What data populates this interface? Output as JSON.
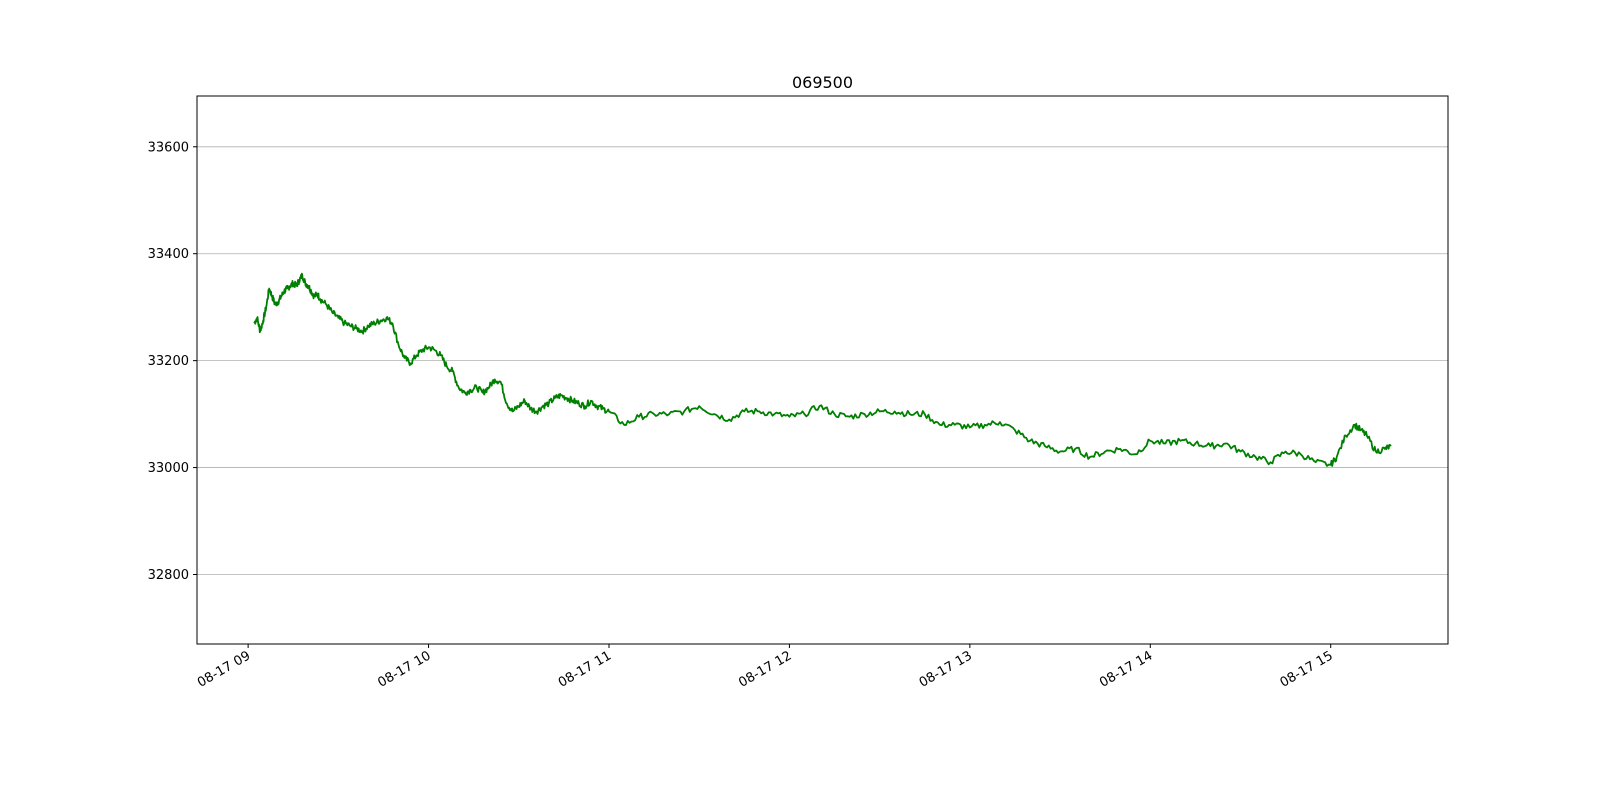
{
  "chart_data": {
    "type": "line",
    "title": "069500",
    "xlabel": "",
    "ylabel": "",
    "x_ticks": [
      "08-17 09",
      "08-17 10",
      "08-17 11",
      "08-17 12",
      "08-17 13",
      "08-17 14",
      "08-17 15"
    ],
    "y_ticks": [
      32800,
      33000,
      33200,
      33400,
      33600
    ],
    "xlim": [
      "2023-08-17 08:43",
      "2023-08-17 15:39"
    ],
    "ylim": [
      32670,
      33695
    ],
    "grid": "y-axis only",
    "line_color": "#008000",
    "series": [
      {
        "x": [
          "09:02",
          "09:03",
          "09:04",
          "09:05",
          "09:06",
          "09:07",
          "09:08",
          "09:09",
          "09:10",
          "09:11",
          "09:12",
          "09:13",
          "09:14",
          "09:15",
          "09:16",
          "09:17",
          "09:18",
          "09:19",
          "09:20",
          "09:21",
          "09:22",
          "09:23",
          "09:24",
          "09:26",
          "09:28",
          "09:30",
          "09:32",
          "09:34",
          "09:36",
          "09:38",
          "09:40",
          "09:42",
          "09:44",
          "09:46",
          "09:48",
          "09:50",
          "09:52",
          "09:54",
          "09:56",
          "09:58",
          "10:00",
          "10:02",
          "10:04",
          "10:06",
          "10:08",
          "10:10",
          "10:12",
          "10:14",
          "10:16",
          "10:18",
          "10:20",
          "10:22",
          "10:24",
          "10:26",
          "10:28",
          "10:30",
          "10:32",
          "10:34",
          "10:36",
          "10:38",
          "10:40",
          "10:42",
          "10:44",
          "10:46",
          "10:48",
          "10:50",
          "10:52",
          "10:54",
          "10:56",
          "10:58",
          "11:00",
          "11:05",
          "11:10",
          "11:15",
          "11:20",
          "11:25",
          "11:30",
          "11:35",
          "11:40",
          "11:45",
          "11:50",
          "11:55",
          "12:00",
          "12:05",
          "12:10",
          "12:15",
          "12:20",
          "12:25",
          "12:30",
          "12:35",
          "12:40",
          "12:45",
          "12:50",
          "12:55",
          "13:00",
          "13:05",
          "13:10",
          "13:15",
          "13:20",
          "13:25",
          "13:30",
          "13:35",
          "13:40",
          "13:45",
          "13:50",
          "13:55",
          "14:00",
          "14:05",
          "14:10",
          "14:15",
          "14:20",
          "14:25",
          "14:30",
          "14:35",
          "14:40",
          "14:45",
          "14:50",
          "14:55",
          "15:00",
          "15:02",
          "15:05",
          "15:08",
          "15:10",
          "15:12",
          "15:15",
          "15:18",
          "15:20"
        ],
        "y": [
          33270,
          33280,
          33255,
          33275,
          33300,
          33335,
          33320,
          33305,
          33310,
          33320,
          33330,
          33335,
          33340,
          33345,
          33340,
          33350,
          33360,
          33345,
          33340,
          33330,
          33320,
          33325,
          33315,
          33305,
          33290,
          33280,
          33270,
          33265,
          33260,
          33255,
          33265,
          33270,
          33275,
          33280,
          33270,
          33230,
          33205,
          33195,
          33210,
          33220,
          33225,
          33220,
          33210,
          33190,
          33180,
          33150,
          33140,
          33145,
          33150,
          33140,
          33150,
          33165,
          33160,
          33120,
          33105,
          33115,
          33125,
          33110,
          33105,
          33115,
          33120,
          33130,
          33135,
          33130,
          33125,
          33120,
          33115,
          33125,
          33115,
          33110,
          33105,
          33080,
          33095,
          33100,
          33100,
          33105,
          33115,
          33100,
          33090,
          33105,
          33105,
          33100,
          33095,
          33100,
          33115,
          33100,
          33095,
          33100,
          33105,
          33105,
          33100,
          33100,
          33080,
          33080,
          33075,
          33080,
          33085,
          33070,
          33050,
          33040,
          33030,
          33035,
          33020,
          33030,
          33035,
          33025,
          33050,
          33045,
          33050,
          33045,
          33040,
          33045,
          33030,
          33020,
          33010,
          33030,
          33025,
          33010,
          33005,
          33020,
          33060,
          33080,
          33070,
          33060,
          33030,
          33035,
          33040
        ]
      }
    ]
  }
}
